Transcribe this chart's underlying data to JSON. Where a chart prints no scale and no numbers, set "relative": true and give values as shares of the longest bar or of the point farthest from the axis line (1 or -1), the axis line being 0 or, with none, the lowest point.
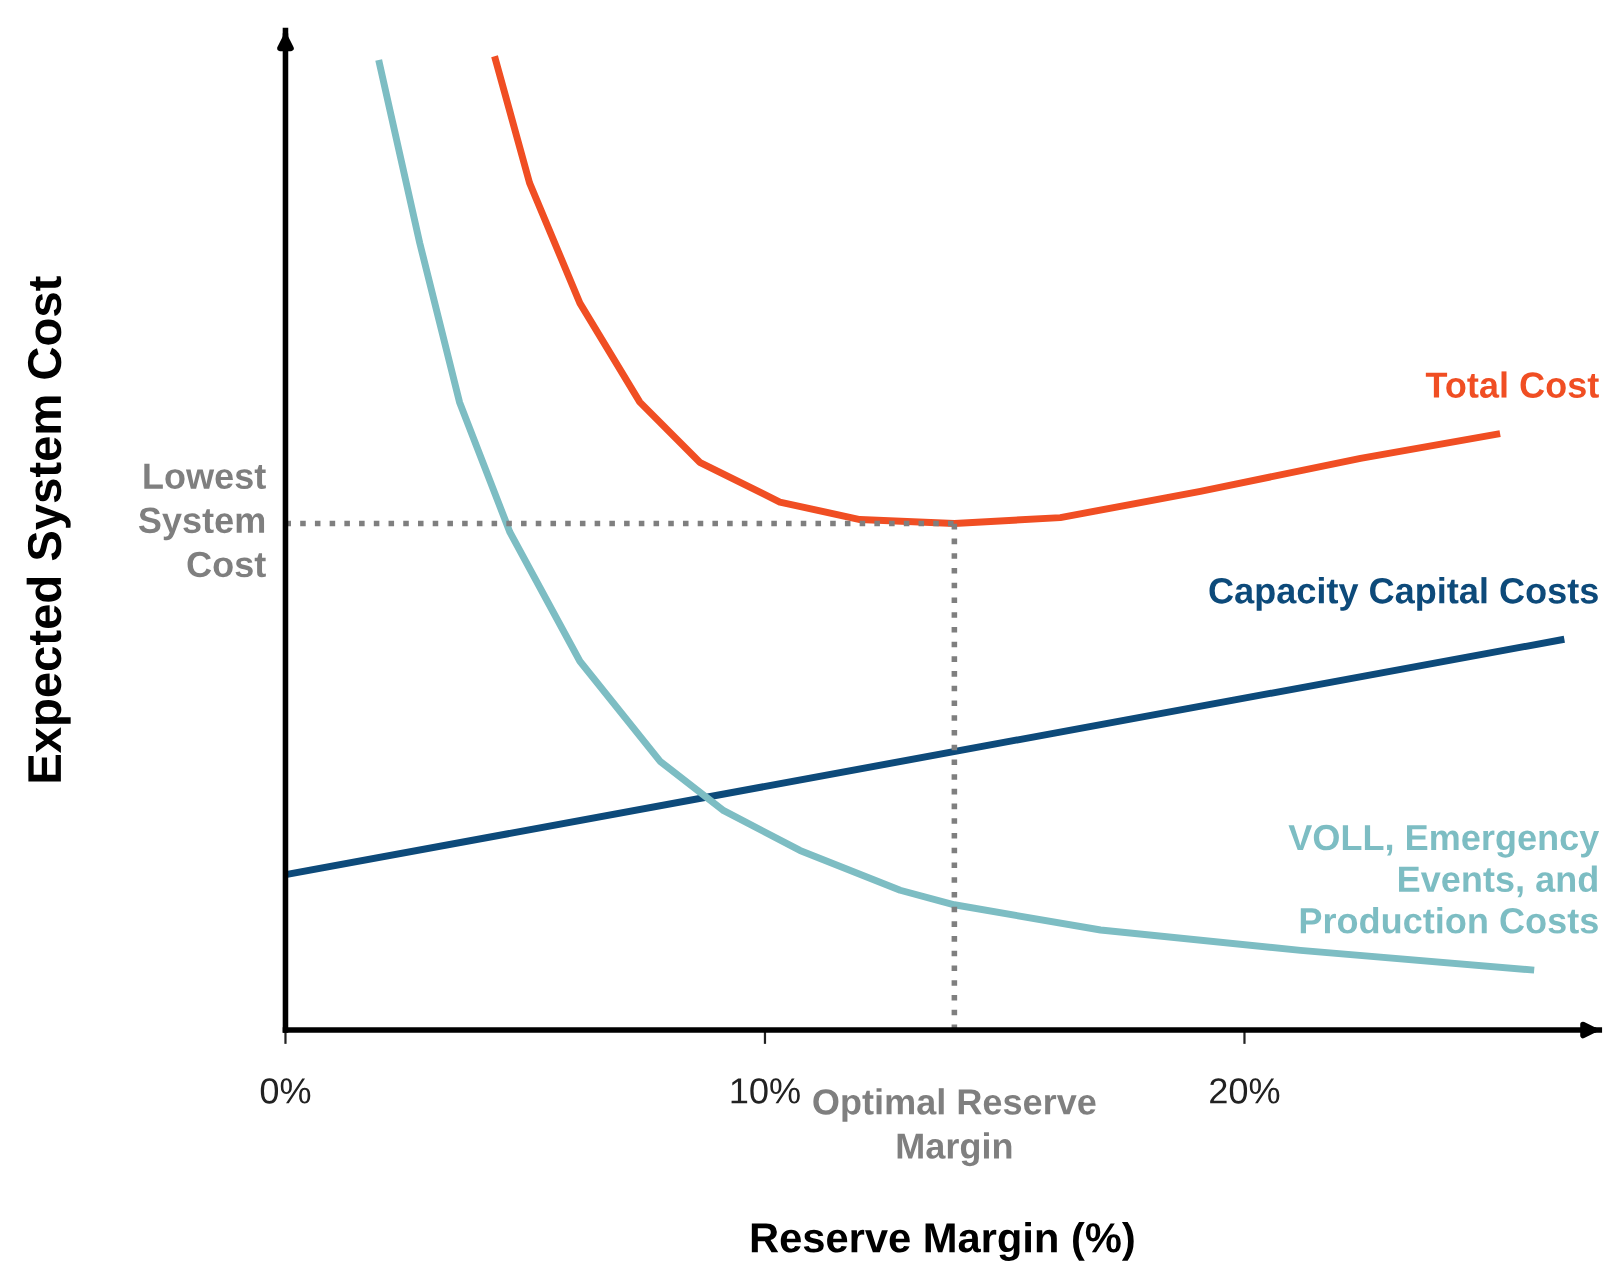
{
  "chart_data": {
    "type": "line",
    "relative": true,
    "xlabel": "Reserve Margin (%)",
    "ylabel": "Expected System Cost",
    "xlim": [
      0,
      27.4
    ],
    "xticks": [
      {
        "value": 0,
        "label": "0%"
      },
      {
        "value": 10,
        "label": "10%"
      },
      {
        "value": 20,
        "label": "20%"
      }
    ],
    "grid": false,
    "marker": "none",
    "line_style": "solid",
    "series": [
      {
        "name": "Total Cost",
        "color": "#f04e23",
        "x": [
          4.38,
          5.09,
          6.14,
          7.39,
          8.64,
          10.31,
          11.98,
          13.95,
          16.16,
          19.08,
          22.42,
          25.26
        ],
        "values": [
          1.0,
          0.873,
          0.749,
          0.647,
          0.585,
          0.544,
          0.526,
          0.522,
          0.528,
          0.555,
          0.589,
          0.614
        ]
      },
      {
        "name": "Capacity Capital Costs",
        "color": "#0d4a7a",
        "x": [
          0,
          26.6
        ],
        "values": [
          0.16,
          0.402
        ]
      },
      {
        "name": "VOLL, Emergency\nEvents, and\nProduction Costs",
        "color": "#7dbdc3",
        "x": [
          1.96,
          2.8,
          3.63,
          4.68,
          6.14,
          7.81,
          9.14,
          10.73,
          12.82,
          13.95,
          17.0,
          21.17,
          25.97
        ],
        "values": [
          0.996,
          0.811,
          0.647,
          0.513,
          0.38,
          0.277,
          0.226,
          0.185,
          0.144,
          0.129,
          0.103,
          0.082,
          0.062
        ]
      }
    ],
    "ref_lines": [
      {
        "axis": "x",
        "value": 13.95,
        "label": "Optimal Reserve\nMargin",
        "color": "#7f7f7f",
        "line_style": "dotted"
      },
      {
        "axis": "y",
        "value": 0.522,
        "label": "Lowest\nSystem\nCost",
        "color": "#7f7f7f",
        "line_style": "dotted"
      }
    ]
  }
}
